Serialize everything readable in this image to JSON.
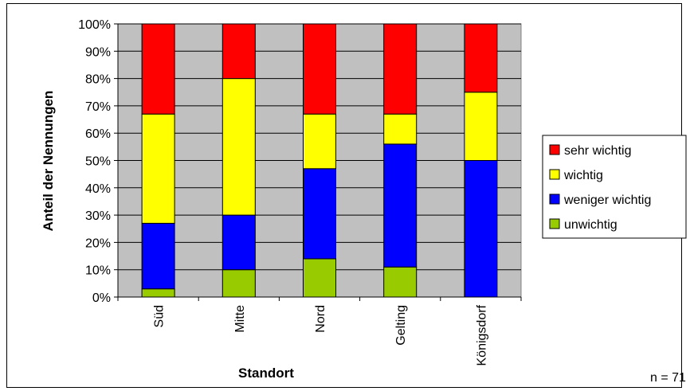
{
  "chart_data": {
    "type": "bar",
    "stacked": true,
    "categories": [
      "Süd",
      "Mitte",
      "Nord",
      "Gelting",
      "Königsdorf"
    ],
    "series": [
      {
        "name": "unwichtig",
        "color": "#99cc00",
        "values": [
          3,
          10,
          14,
          11,
          0
        ]
      },
      {
        "name": "weniger wichtig",
        "color": "#0000ff",
        "values": [
          24,
          20,
          33,
          45,
          50
        ]
      },
      {
        "name": "wichtig",
        "color": "#ffff00",
        "values": [
          40,
          50,
          20,
          11,
          25
        ]
      },
      {
        "name": "sehr wichtig",
        "color": "#ff0000",
        "values": [
          33,
          20,
          33,
          33,
          25
        ]
      }
    ],
    "ylim": [
      0,
      100
    ],
    "yticks": [
      "0%",
      "10%",
      "20%",
      "30%",
      "40%",
      "50%",
      "60%",
      "70%",
      "80%",
      "90%",
      "100%"
    ],
    "xlabel": "Standort",
    "ylabel": "Anteil der Nennungen",
    "grid": true,
    "plot_background": "#c0c0c0",
    "legend_position": "right",
    "legend_order": [
      "sehr wichtig",
      "wichtig",
      "weniger wichtig",
      "unwichtig"
    ],
    "note": "n = 71"
  }
}
